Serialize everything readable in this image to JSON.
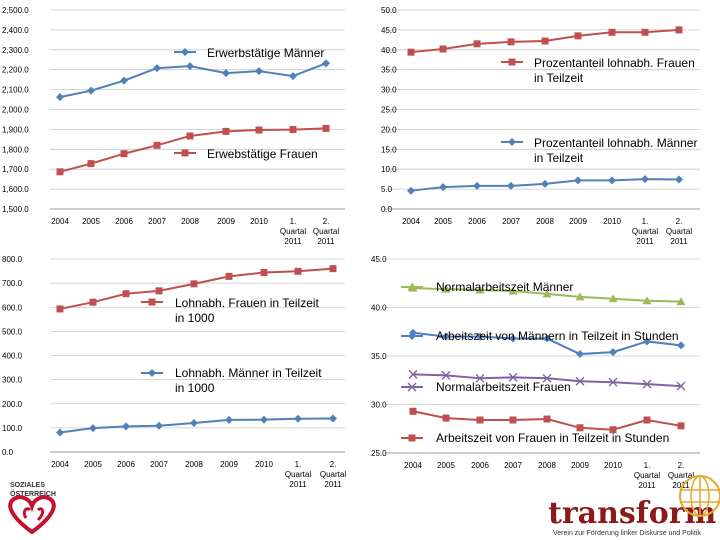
{
  "chart_data": [
    {
      "type": "line",
      "categories": [
        "2004",
        "2005",
        "2006",
        "2007",
        "2008",
        "2009",
        "2010",
        "1. Quartal 2011",
        "2. Quartal 2011"
      ],
      "ylim": [
        1500,
        2500
      ],
      "yticks": [
        "1,500.0",
        "1,600.0",
        "1,700.0",
        "1,800.0",
        "1,900.0",
        "2,000.0",
        "2,100.0",
        "2,200.0",
        "2,300.0",
        "2,400.0",
        "2,500.0"
      ],
      "series": [
        {
          "name": "Erwerbstätige Männer",
          "color": "#4f81bd",
          "marker": "diamond",
          "values": [
            2062,
            2095,
            2145,
            2208,
            2218,
            2183,
            2193,
            2168,
            2232
          ]
        },
        {
          "name": "Erwebstätige Frauen",
          "color": "#c0504d",
          "marker": "square",
          "values": [
            1687,
            1728,
            1778,
            1820,
            1867,
            1890,
            1897,
            1899,
            1905
          ]
        }
      ]
    },
    {
      "type": "line",
      "categories": [
        "2004",
        "2005",
        "2006",
        "2007",
        "2008",
        "2009",
        "2010",
        "1. Quartal 2011",
        "2. Quartal 2011"
      ],
      "ylim": [
        0,
        50
      ],
      "yticks": [
        "0.0",
        "5.0",
        "10.0",
        "15.0",
        "20.0",
        "25.0",
        "30.0",
        "35.0",
        "40.0",
        "45.0",
        "50.0"
      ],
      "series": [
        {
          "name": "Prozentanteil lohnabh. Frauen in Teilzeit",
          "color": "#c0504d",
          "marker": "square",
          "values": [
            39.4,
            40.2,
            41.5,
            42.0,
            42.2,
            43.5,
            44.4,
            44.4,
            45.0
          ]
        },
        {
          "name": "Prozentanteil lohnabh. Männer in Teilzeit",
          "color": "#4f81bd",
          "marker": "diamond",
          "values": [
            4.6,
            5.5,
            5.8,
            5.8,
            6.3,
            7.2,
            7.2,
            7.5,
            7.4
          ]
        }
      ]
    },
    {
      "type": "line",
      "categories": [
        "2004",
        "2005",
        "2006",
        "2007",
        "2008",
        "2009",
        "2010",
        "1. Quartal 2011",
        "2. Quartal 2011"
      ],
      "ylim": [
        0,
        800
      ],
      "yticks": [
        "0.0",
        "100.0",
        "200.0",
        "300.0",
        "400.0",
        "500.0",
        "600.0",
        "700.0",
        "800.0"
      ],
      "series": [
        {
          "name": "Lohnabh. Frauen in Teilzeit in 1000",
          "color": "#c0504d",
          "marker": "square",
          "values": [
            593,
            621,
            656,
            668,
            697,
            728,
            744,
            749,
            760
          ]
        },
        {
          "name": "Lohnabh. Männer in Teilzeit in 1000",
          "color": "#4f81bd",
          "marker": "diamond",
          "values": [
            81,
            99,
            106,
            109,
            120,
            133,
            134,
            138,
            139
          ]
        }
      ]
    },
    {
      "type": "line",
      "categories": [
        "2004",
        "2005",
        "2006",
        "2007",
        "2008",
        "2009",
        "2010",
        "1. Quartal 2011",
        "2. Quartal 2011"
      ],
      "ylim": [
        25,
        45
      ],
      "yticks": [
        "25.0",
        "30.0",
        "35.0",
        "40.0",
        "45.0"
      ],
      "series": [
        {
          "name": "Normalarbeitszeit Männer",
          "color": "#9bbb59",
          "marker": "triangle",
          "values": [
            42.0,
            41.9,
            41.8,
            41.7,
            41.4,
            41.1,
            40.9,
            40.7,
            40.6
          ]
        },
        {
          "name": "Arbeitszeit von Männern in Teilzeit in Stunden",
          "color": "#4f81bd",
          "marker": "diamond",
          "values": [
            37.4,
            37.0,
            37.0,
            36.8,
            36.8,
            35.2,
            35.4,
            36.5,
            36.1
          ]
        },
        {
          "name": "Normalarbeitszeit Frauen",
          "color": "#8064a2",
          "marker": "x",
          "values": [
            33.1,
            33.0,
            32.7,
            32.8,
            32.7,
            32.4,
            32.3,
            32.1,
            31.9
          ]
        },
        {
          "name": "Arbeitszeit von Frauen in Teilzeit in Stunden",
          "color": "#c0504d",
          "marker": "square",
          "values": [
            29.3,
            28.6,
            28.4,
            28.4,
            28.5,
            27.6,
            27.4,
            28.4,
            27.8
          ]
        }
      ]
    }
  ],
  "logos": {
    "left_text": "SOZIALES ÖSTERREICH",
    "right_title": "transform!at",
    "right_subtitle": "Verein zur Förderung linker Diskurse und Politik"
  }
}
